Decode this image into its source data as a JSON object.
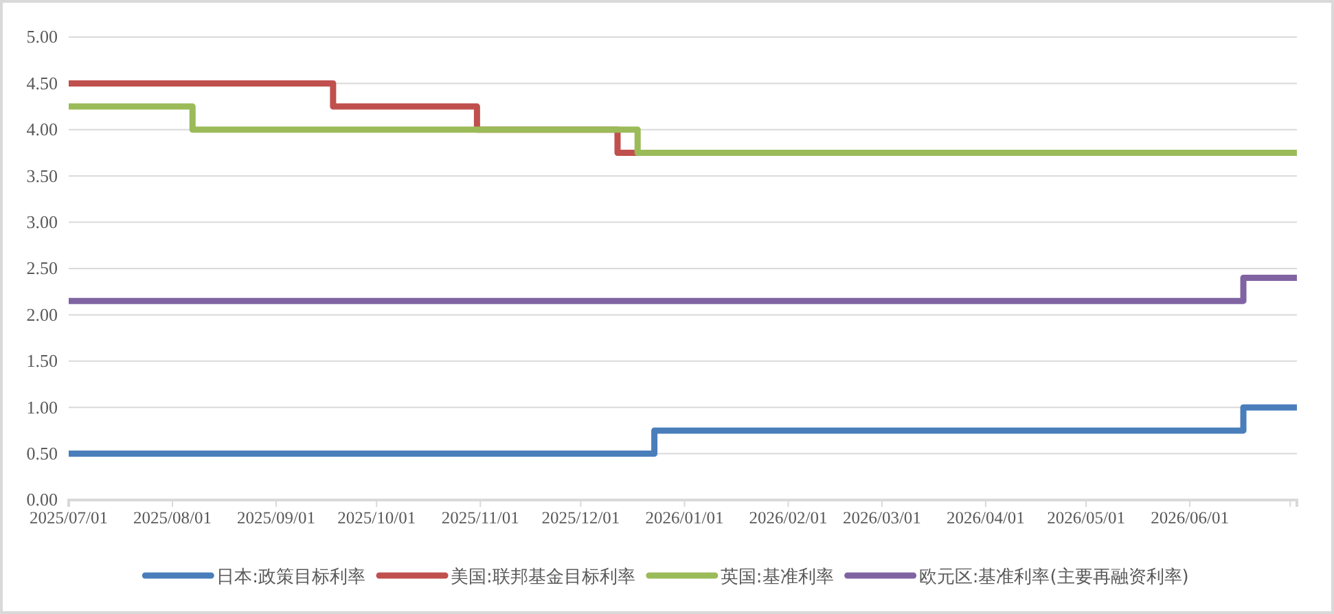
{
  "chart_data": {
    "type": "step",
    "xlim": [
      "2025-07-01",
      "2026-07-03"
    ],
    "xticks": [
      {
        "value": "2025-07-01",
        "label": "2025/07/01"
      },
      {
        "value": "2025-08-01",
        "label": "2025/08/01"
      },
      {
        "value": "2025-09-01",
        "label": "2025/09/01"
      },
      {
        "value": "2025-10-01",
        "label": "2025/10/01"
      },
      {
        "value": "2025-11-01",
        "label": "2025/11/01"
      },
      {
        "value": "2025-12-01",
        "label": "2025/12/01"
      },
      {
        "value": "2026-01-01",
        "label": "2026/01/01"
      },
      {
        "value": "2026-02-01",
        "label": "2026/02/01"
      },
      {
        "value": "2026-03-01",
        "label": "2026/03/01"
      },
      {
        "value": "2026-04-01",
        "label": "2026/04/01"
      },
      {
        "value": "2026-05-01",
        "label": "2026/05/01"
      },
      {
        "value": "2026-06-01",
        "label": "2026/06/01"
      },
      {
        "value": "2026-07-01",
        "label": null
      }
    ],
    "ylim": [
      0,
      5
    ],
    "yticks": [
      {
        "value": 0,
        "label": "0.00"
      },
      {
        "value": 0.5,
        "label": "0.50"
      },
      {
        "value": 1,
        "label": "1.00"
      },
      {
        "value": 1.5,
        "label": "1.50"
      },
      {
        "value": 2,
        "label": "2.00"
      },
      {
        "value": 2.5,
        "label": "2.50"
      },
      {
        "value": 3,
        "label": "3.00"
      },
      {
        "value": 3.5,
        "label": "3.50"
      },
      {
        "value": 4,
        "label": "4.00"
      },
      {
        "value": 4.5,
        "label": "4.50"
      },
      {
        "value": 5,
        "label": "5.00"
      }
    ],
    "grid": "y",
    "legend": "bottom",
    "line_style": "solid",
    "marker": "none",
    "series": [
      {
        "name": "日本:政策目标利率",
        "color": "#4a7ebb",
        "x": [
          "2025-07-01",
          "2025-12-23",
          "2026-06-17",
          "2026-07-03"
        ],
        "values": [
          0.5,
          0.75,
          1.0,
          1.0
        ]
      },
      {
        "name": "美国:联邦基金目标利率",
        "color": "#c0504d",
        "x": [
          "2025-07-01",
          "2025-09-18",
          "2025-10-31",
          "2025-12-12",
          "2025-12-18"
        ],
        "values": [
          4.5,
          4.25,
          4.0,
          3.75,
          3.75
        ]
      },
      {
        "name": "英国:基准利率",
        "color": "#9bbb59",
        "x": [
          "2025-07-01",
          "2025-08-07",
          "2025-12-18",
          "2026-07-03"
        ],
        "values": [
          4.25,
          4.0,
          3.75,
          3.75
        ]
      },
      {
        "name": "欧元区:基准利率(主要再融资利率)",
        "color": "#8064a2",
        "x": [
          "2025-07-01",
          "2026-06-17",
          "2026-07-03"
        ],
        "values": [
          2.15,
          2.4,
          2.4
        ]
      }
    ]
  }
}
